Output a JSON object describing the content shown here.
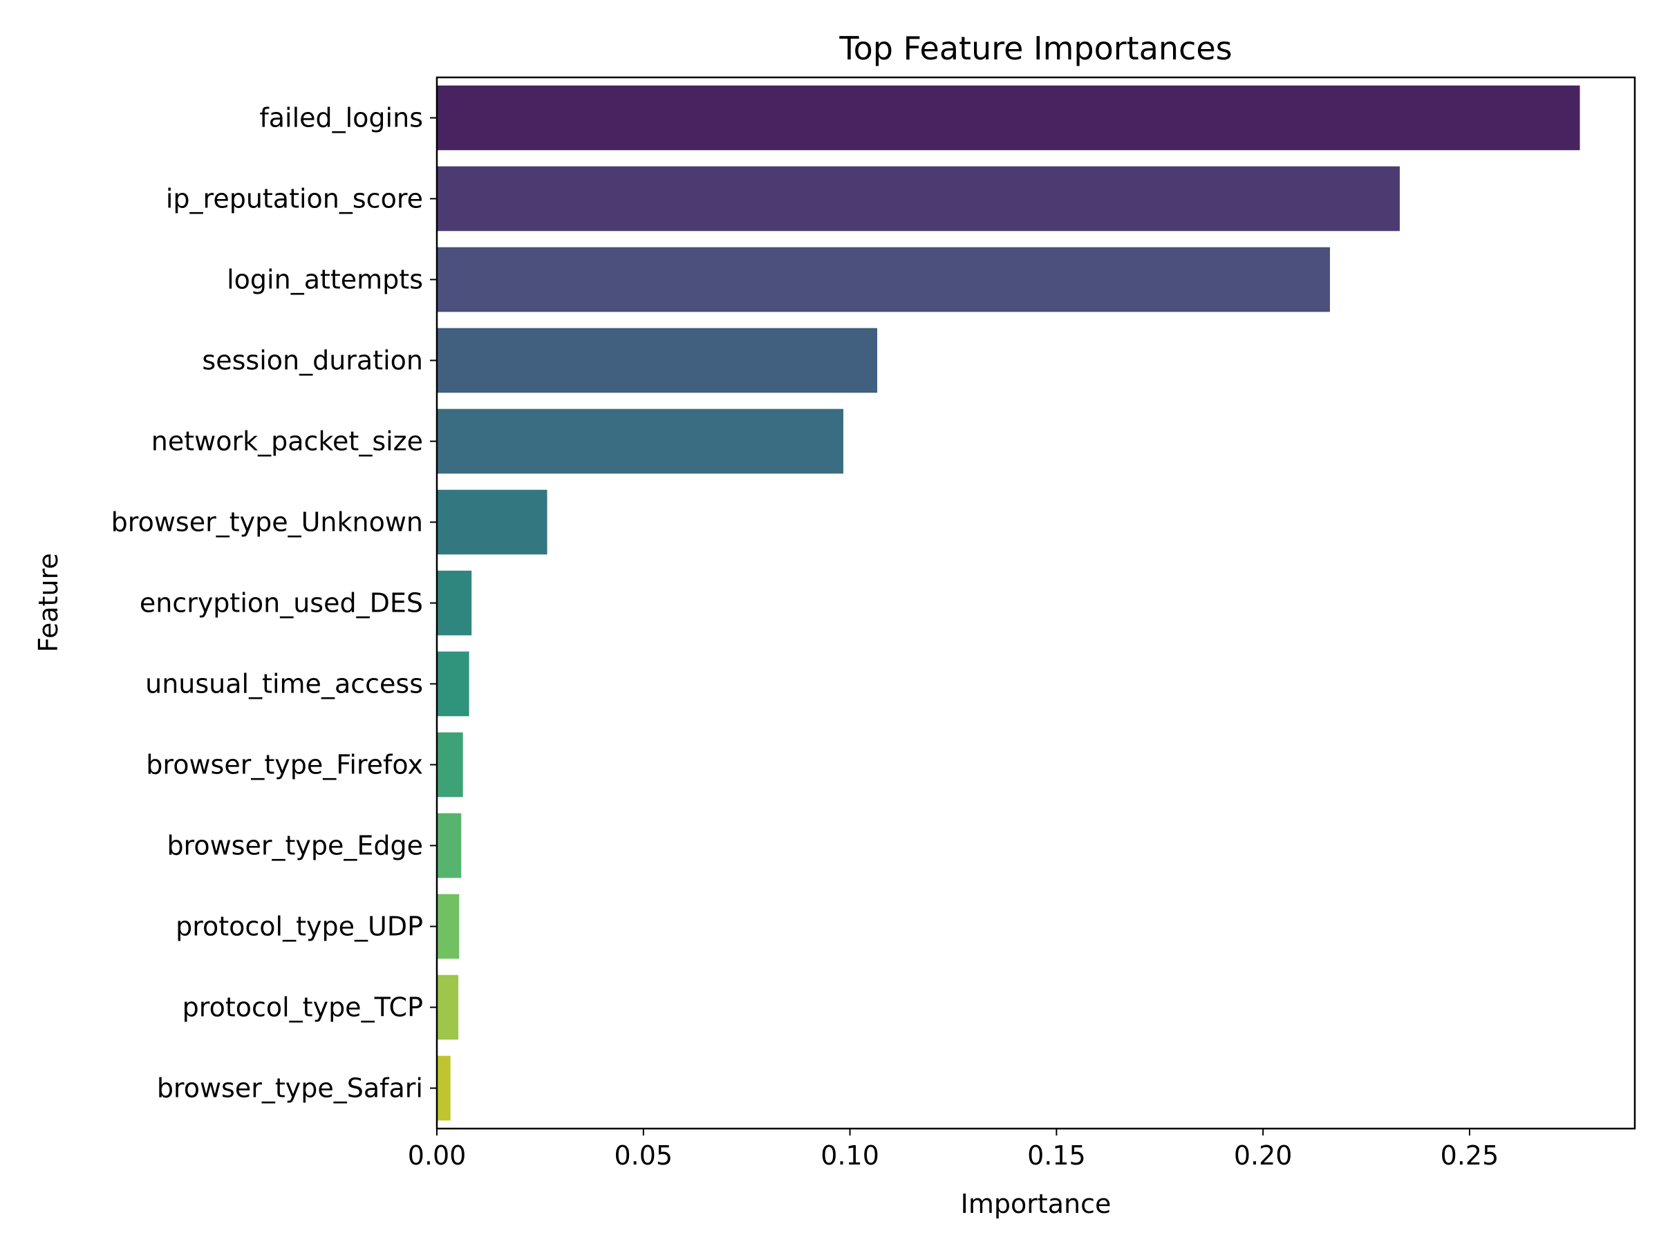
{
  "chart_data": {
    "type": "bar",
    "orientation": "horizontal",
    "title": "Top Feature Importances",
    "xlabel": "Importance",
    "ylabel": "Feature",
    "xlim": [
      0,
      0.29
    ],
    "x_ticks": [
      0.0,
      0.05,
      0.1,
      0.15,
      0.2,
      0.25
    ],
    "x_tick_labels": [
      "0.00",
      "0.05",
      "0.10",
      "0.15",
      "0.20",
      "0.25"
    ],
    "grid": false,
    "legend": "none",
    "categories": [
      "failed_logins",
      "ip_reputation_score",
      "login_attempts",
      "session_duration",
      "network_packet_size",
      "browser_type_Unknown",
      "encryption_used_DES",
      "unusual_time_access",
      "browser_type_Firefox",
      "browser_type_Edge",
      "protocol_type_UDP",
      "protocol_type_TCP",
      "browser_type_Safari"
    ],
    "values": [
      0.2767,
      0.2331,
      0.2162,
      0.1066,
      0.0984,
      0.0267,
      0.0084,
      0.0078,
      0.0063,
      0.0059,
      0.0054,
      0.0052,
      0.0033
    ],
    "colors": [
      "#472360",
      "#4c3b71",
      "#4b507d",
      "#415f7f",
      "#3b6d82",
      "#337881",
      "#2f867e",
      "#30937c",
      "#3da276",
      "#56b46e",
      "#71c163",
      "#9dc64b",
      "#c0c52f"
    ]
  }
}
